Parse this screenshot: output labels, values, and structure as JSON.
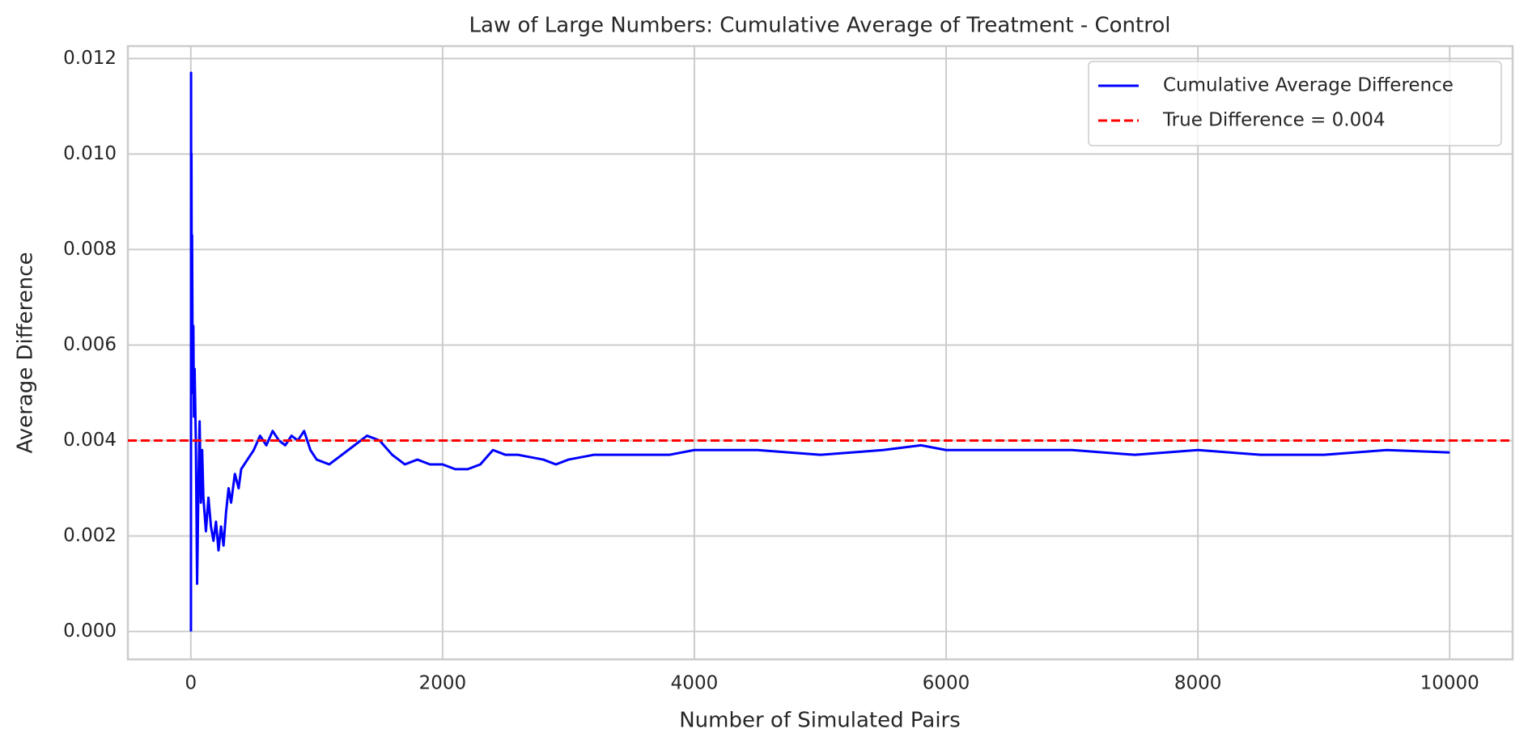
{
  "chart_data": {
    "type": "line",
    "title": "Law of Large Numbers: Cumulative Average of Treatment - Control",
    "x_label": "Number of Simulated Pairs",
    "y_label": "Average Difference",
    "x": [
      1,
      2,
      3,
      5,
      8,
      10,
      15,
      20,
      25,
      30,
      40,
      50,
      60,
      70,
      80,
      90,
      100,
      120,
      140,
      160,
      180,
      200,
      220,
      240,
      260,
      280,
      300,
      320,
      350,
      380,
      400,
      450,
      500,
      550,
      600,
      650,
      700,
      750,
      800,
      850,
      900,
      950,
      1000,
      1100,
      1200,
      1300,
      1400,
      1500,
      1600,
      1700,
      1800,
      1900,
      2000,
      2100,
      2200,
      2300,
      2400,
      2500,
      2600,
      2800,
      2900,
      3000,
      3200,
      3500,
      3800,
      4000,
      4500,
      5000,
      5500,
      5800,
      6000,
      6500,
      7000,
      7500,
      8000,
      8500,
      9000,
      9500,
      10000
    ],
    "series": [
      {
        "name": "Cumulative Average Difference",
        "color": "#0000ff",
        "values": [
          0.0,
          0.0117,
          0.0089,
          0.01,
          0.006,
          0.0083,
          0.005,
          0.0064,
          0.0045,
          0.0055,
          0.004,
          0.001,
          0.003,
          0.0044,
          0.0027,
          0.0038,
          0.0028,
          0.0021,
          0.0028,
          0.0022,
          0.0019,
          0.0023,
          0.0017,
          0.0022,
          0.0018,
          0.0025,
          0.003,
          0.0027,
          0.0033,
          0.003,
          0.0034,
          0.0036,
          0.0038,
          0.0041,
          0.0039,
          0.0042,
          0.004,
          0.0039,
          0.0041,
          0.004,
          0.0042,
          0.0038,
          0.0036,
          0.0035,
          0.0037,
          0.0039,
          0.0041,
          0.004,
          0.0037,
          0.0035,
          0.0036,
          0.0035,
          0.0035,
          0.0034,
          0.0034,
          0.0035,
          0.0038,
          0.0037,
          0.0037,
          0.0036,
          0.0035,
          0.0036,
          0.0037,
          0.0037,
          0.0037,
          0.0038,
          0.0038,
          0.0037,
          0.0038,
          0.0039,
          0.0038,
          0.0038,
          0.0038,
          0.0037,
          0.0038,
          0.0037,
          0.0037,
          0.0038,
          0.00375
        ]
      }
    ],
    "reference_line": {
      "name": "True Difference = 0.004",
      "value": 0.004,
      "color": "#ff0000"
    },
    "xlim": [
      -500,
      10500
    ],
    "ylim": [
      -0.000584,
      0.01226
    ],
    "xticks": [
      0,
      2000,
      4000,
      6000,
      8000,
      10000
    ],
    "yticks": [
      {
        "value": 0,
        "label": "0.000"
      },
      0.002,
      0.004,
      0.006,
      0.008,
      {
        "value": 0.01,
        "label": "0.010"
      },
      0.012
    ],
    "grid": true,
    "legend": "upper right"
  }
}
